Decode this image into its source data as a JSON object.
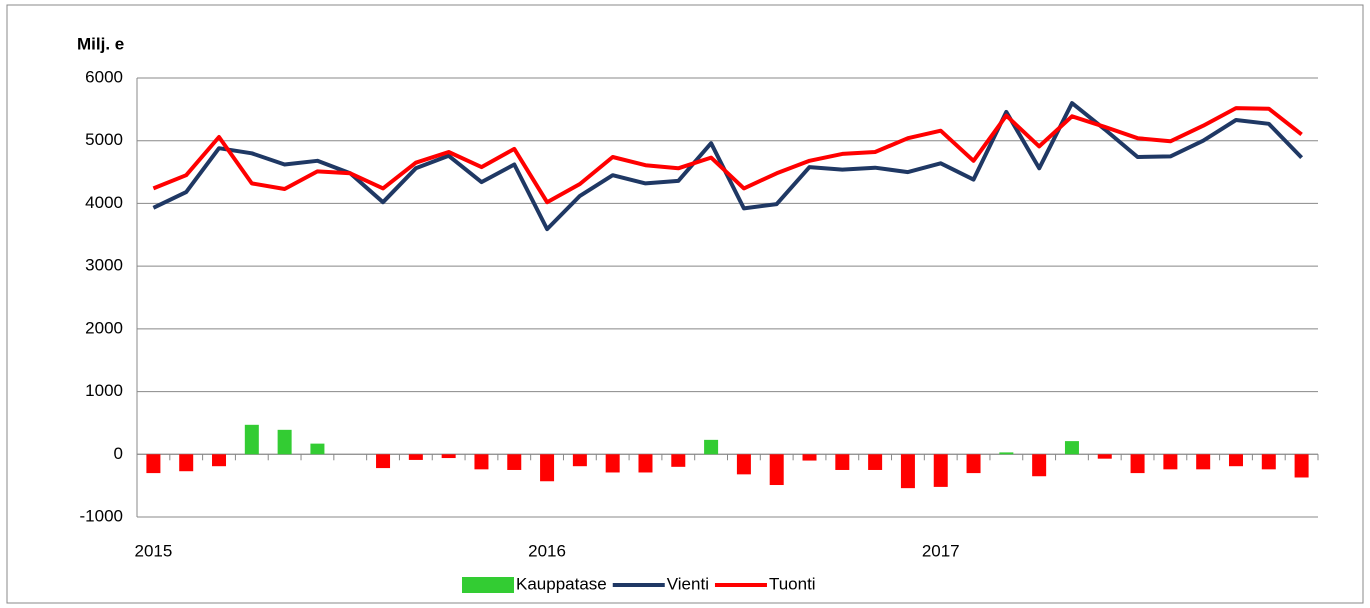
{
  "chart_data": {
    "type": "bar_line",
    "y_label": "Milj. e",
    "categories": [
      "2015",
      null,
      null,
      null,
      null,
      null,
      null,
      null,
      null,
      null,
      null,
      null,
      "2016",
      null,
      null,
      null,
      null,
      null,
      null,
      null,
      null,
      null,
      null,
      null,
      "2017",
      null,
      null,
      null,
      null,
      null,
      null,
      null,
      null,
      null,
      null,
      null
    ],
    "series": [
      {
        "name": "Kauppatase",
        "type": "bar",
        "color": "#33cc33",
        "negative_color": "#ff0000",
        "values": [
          -300,
          -270,
          -190,
          470,
          390,
          170,
          0,
          -220,
          -90,
          -60,
          -240,
          -250,
          -430,
          -190,
          -290,
          -290,
          -200,
          230,
          -320,
          -490,
          -100,
          -250,
          -250,
          -540,
          -520,
          -300,
          30,
          -350,
          210,
          -70,
          -300,
          -240,
          -240,
          -190,
          -240,
          -370
        ]
      },
      {
        "name": "Vienti",
        "type": "line",
        "color": "#1f3864",
        "values": [
          3930,
          4180,
          4880,
          4800,
          4620,
          4680,
          4480,
          4020,
          4560,
          4760,
          4340,
          4620,
          3590,
          4120,
          4450,
          4320,
          4360,
          4960,
          3920,
          3990,
          4580,
          4540,
          4570,
          4500,
          4640,
          4380,
          5460,
          4560,
          5600,
          5180,
          4740,
          4750,
          5000,
          5330,
          5270,
          4730
        ]
      },
      {
        "name": "Tuonti",
        "type": "line",
        "color": "#ff0000",
        "values": [
          4240,
          4450,
          5060,
          4320,
          4230,
          4510,
          4480,
          4240,
          4650,
          4820,
          4580,
          4870,
          4020,
          4310,
          4740,
          4610,
          4560,
          4730,
          4240,
          4480,
          4680,
          4790,
          4820,
          5040,
          5160,
          4680,
          5400,
          4910,
          5390,
          5220,
          5040,
          4990,
          5240,
          5520,
          5510,
          5100
        ]
      }
    ],
    "ylim": [
      -1000,
      6000
    ],
    "yticks": [
      -1000,
      0,
      1000,
      2000,
      3000,
      4000,
      5000,
      6000
    ],
    "grid": true,
    "legend": "bottom"
  }
}
